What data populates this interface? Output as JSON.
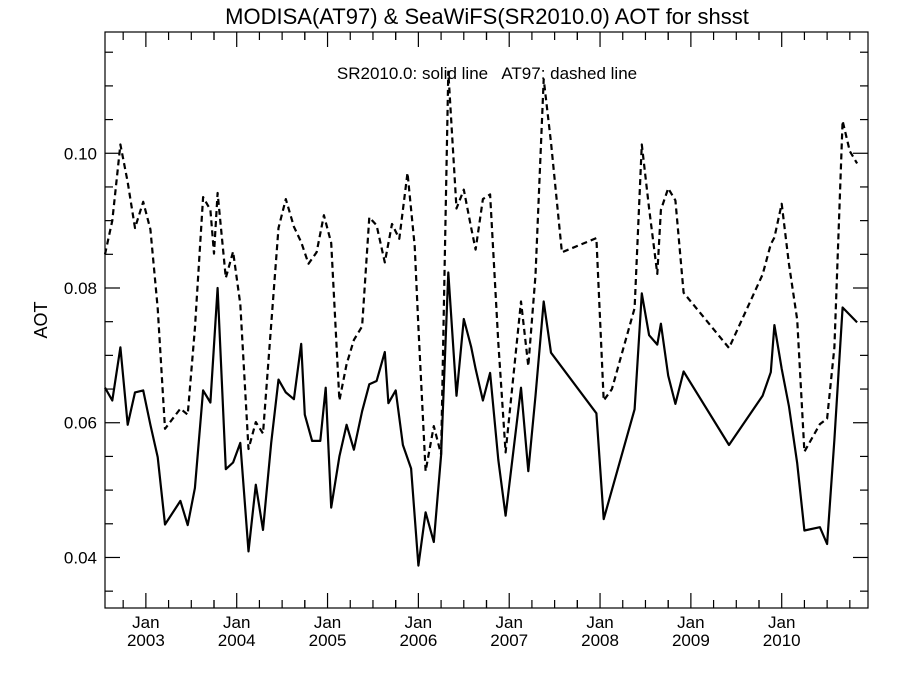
{
  "chart_data": {
    "type": "line",
    "title": "MODISA(AT97) & SeaWiFS(SR2010.0)  AOT for shsst",
    "legend_text": "SR2010.0: solid line   AT97: dashed line",
    "legend_position": "top-center",
    "ylabel": "AOT",
    "xlabel": "",
    "grid": false,
    "xlim": [
      2002.55,
      2010.95
    ],
    "ylim": [
      0.0325,
      0.118
    ],
    "y_ticks": [
      0.04,
      0.06,
      0.08,
      0.1
    ],
    "y_tick_labels": [
      "0.04",
      "0.06",
      "0.08",
      "0.10"
    ],
    "x_ticks": [
      {
        "year": 2003,
        "month": "Jan",
        "label": "2003"
      },
      {
        "year": 2004,
        "month": "Jan",
        "label": "2004"
      },
      {
        "year": 2005,
        "month": "Jan",
        "label": "2005"
      },
      {
        "year": 2006,
        "month": "Jan",
        "label": "2006"
      },
      {
        "year": 2007,
        "month": "Jan",
        "label": "2007"
      },
      {
        "year": 2008,
        "month": "Jan",
        "label": "2008"
      },
      {
        "year": 2009,
        "month": "Jan",
        "label": "2009"
      },
      {
        "year": 2010,
        "month": "Jan",
        "label": "2010"
      }
    ],
    "series": [
      {
        "name": "SR2010.0",
        "style": "solid",
        "color": "#000000",
        "points": [
          [
            2002.55,
            0.0652
          ],
          [
            2002.63,
            0.0633
          ],
          [
            2002.72,
            0.0712
          ],
          [
            2002.8,
            0.0597
          ],
          [
            2002.88,
            0.0645
          ],
          [
            2002.97,
            0.0648
          ],
          [
            2003.05,
            0.0597
          ],
          [
            2003.13,
            0.0549
          ],
          [
            2003.21,
            0.0449
          ],
          [
            2003.38,
            0.0484
          ],
          [
            2003.46,
            0.0448
          ],
          [
            2003.54,
            0.0503
          ],
          [
            2003.63,
            0.0648
          ],
          [
            2003.71,
            0.063
          ],
          [
            2003.79,
            0.08
          ],
          [
            2003.88,
            0.0531
          ],
          [
            2003.96,
            0.0541
          ],
          [
            2004.04,
            0.057
          ],
          [
            2004.13,
            0.0409
          ],
          [
            2004.21,
            0.0508
          ],
          [
            2004.29,
            0.0441
          ],
          [
            2004.38,
            0.057
          ],
          [
            2004.46,
            0.0664
          ],
          [
            2004.54,
            0.0645
          ],
          [
            2004.63,
            0.0635
          ],
          [
            2004.71,
            0.0717
          ],
          [
            2004.75,
            0.0612
          ],
          [
            2004.83,
            0.0573
          ],
          [
            2004.92,
            0.0573
          ],
          [
            2004.98,
            0.0652
          ],
          [
            2005.04,
            0.0474
          ],
          [
            2005.13,
            0.055
          ],
          [
            2005.21,
            0.0597
          ],
          [
            2005.29,
            0.056
          ],
          [
            2005.38,
            0.0617
          ],
          [
            2005.46,
            0.0657
          ],
          [
            2005.54,
            0.0662
          ],
          [
            2005.63,
            0.0705
          ],
          [
            2005.67,
            0.0629
          ],
          [
            2005.75,
            0.0648
          ],
          [
            2005.83,
            0.0567
          ],
          [
            2005.92,
            0.0532
          ],
          [
            2006.0,
            0.0388
          ],
          [
            2006.08,
            0.0467
          ],
          [
            2006.17,
            0.0423
          ],
          [
            2006.25,
            0.0552
          ],
          [
            2006.33,
            0.0823
          ],
          [
            2006.42,
            0.064
          ],
          [
            2006.5,
            0.0754
          ],
          [
            2006.58,
            0.0713
          ],
          [
            2006.63,
            0.068
          ],
          [
            2006.71,
            0.0633
          ],
          [
            2006.79,
            0.0674
          ],
          [
            2006.88,
            0.0545
          ],
          [
            2006.96,
            0.0462
          ],
          [
            2007.13,
            0.0652
          ],
          [
            2007.21,
            0.0528
          ],
          [
            2007.29,
            0.064
          ],
          [
            2007.38,
            0.078
          ],
          [
            2007.46,
            0.0704
          ],
          [
            2007.96,
            0.0614
          ],
          [
            2008.04,
            0.0457
          ],
          [
            2008.38,
            0.062
          ],
          [
            2008.46,
            0.0792
          ],
          [
            2008.54,
            0.073
          ],
          [
            2008.63,
            0.0716
          ],
          [
            2008.67,
            0.0747
          ],
          [
            2008.75,
            0.067
          ],
          [
            2008.83,
            0.0628
          ],
          [
            2008.92,
            0.0676
          ],
          [
            2009.42,
            0.0567
          ],
          [
            2009.79,
            0.064
          ],
          [
            2009.88,
            0.0675
          ],
          [
            2009.92,
            0.0745
          ],
          [
            2010.0,
            0.068
          ],
          [
            2010.08,
            0.0624
          ],
          [
            2010.17,
            0.054
          ],
          [
            2010.25,
            0.044
          ],
          [
            2010.42,
            0.0445
          ],
          [
            2010.5,
            0.042
          ],
          [
            2010.58,
            0.0575
          ],
          [
            2010.67,
            0.0771
          ],
          [
            2010.75,
            0.076
          ],
          [
            2010.83,
            0.0749
          ]
        ]
      },
      {
        "name": "AT97",
        "style": "dashed",
        "color": "#000000",
        "points": [
          [
            2002.55,
            0.085
          ],
          [
            2002.63,
            0.09
          ],
          [
            2002.72,
            0.1013
          ],
          [
            2002.8,
            0.0957
          ],
          [
            2002.88,
            0.0889
          ],
          [
            2002.97,
            0.0928
          ],
          [
            2003.05,
            0.0887
          ],
          [
            2003.13,
            0.077
          ],
          [
            2003.21,
            0.0591
          ],
          [
            2003.38,
            0.0621
          ],
          [
            2003.46,
            0.0612
          ],
          [
            2003.54,
            0.074
          ],
          [
            2003.63,
            0.0935
          ],
          [
            2003.71,
            0.0916
          ],
          [
            2003.75,
            0.0851
          ],
          [
            2003.79,
            0.0941
          ],
          [
            2003.88,
            0.0815
          ],
          [
            2003.96,
            0.0854
          ],
          [
            2004.04,
            0.0776
          ],
          [
            2004.13,
            0.0561
          ],
          [
            2004.21,
            0.0601
          ],
          [
            2004.29,
            0.0584
          ],
          [
            2004.38,
            0.0746
          ],
          [
            2004.46,
            0.0889
          ],
          [
            2004.54,
            0.0932
          ],
          [
            2004.63,
            0.0891
          ],
          [
            2004.71,
            0.0868
          ],
          [
            2004.79,
            0.0836
          ],
          [
            2004.88,
            0.0853
          ],
          [
            2004.96,
            0.0908
          ],
          [
            2005.04,
            0.0867
          ],
          [
            2005.13,
            0.0633
          ],
          [
            2005.21,
            0.0687
          ],
          [
            2005.29,
            0.0723
          ],
          [
            2005.38,
            0.0743
          ],
          [
            2005.46,
            0.0905
          ],
          [
            2005.54,
            0.0893
          ],
          [
            2005.63,
            0.0838
          ],
          [
            2005.71,
            0.0895
          ],
          [
            2005.79,
            0.0873
          ],
          [
            2005.88,
            0.0971
          ],
          [
            2005.96,
            0.0862
          ],
          [
            2006.0,
            0.0742
          ],
          [
            2006.08,
            0.0528
          ],
          [
            2006.17,
            0.0595
          ],
          [
            2006.25,
            0.0553
          ],
          [
            2006.33,
            0.1121
          ],
          [
            2006.42,
            0.0918
          ],
          [
            2006.5,
            0.0946
          ],
          [
            2006.58,
            0.089
          ],
          [
            2006.63,
            0.0857
          ],
          [
            2006.71,
            0.0932
          ],
          [
            2006.79,
            0.0939
          ],
          [
            2006.88,
            0.0719
          ],
          [
            2006.96,
            0.0556
          ],
          [
            2007.13,
            0.078
          ],
          [
            2007.21,
            0.0684
          ],
          [
            2007.29,
            0.0819
          ],
          [
            2007.38,
            0.111
          ],
          [
            2007.46,
            0.1016
          ],
          [
            2007.58,
            0.0853
          ],
          [
            2007.96,
            0.0874
          ],
          [
            2008.04,
            0.0633
          ],
          [
            2008.13,
            0.065
          ],
          [
            2008.38,
            0.077
          ],
          [
            2008.46,
            0.1013
          ],
          [
            2008.54,
            0.0918
          ],
          [
            2008.63,
            0.0821
          ],
          [
            2008.67,
            0.0916
          ],
          [
            2008.75,
            0.0948
          ],
          [
            2008.83,
            0.093
          ],
          [
            2008.92,
            0.0793
          ],
          [
            2009.42,
            0.0711
          ],
          [
            2009.79,
            0.082
          ],
          [
            2009.88,
            0.0865
          ],
          [
            2009.92,
            0.0875
          ],
          [
            2010.0,
            0.0925
          ],
          [
            2010.08,
            0.0835
          ],
          [
            2010.17,
            0.0753
          ],
          [
            2010.25,
            0.0557
          ],
          [
            2010.42,
            0.0598
          ],
          [
            2010.5,
            0.0606
          ],
          [
            2010.58,
            0.0712
          ],
          [
            2010.67,
            0.1048
          ],
          [
            2010.75,
            0.1003
          ],
          [
            2010.83,
            0.0985
          ]
        ]
      }
    ]
  }
}
